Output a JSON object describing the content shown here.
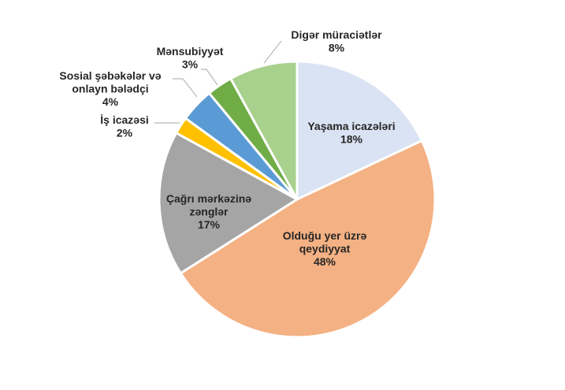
{
  "chart_data": {
    "type": "pie",
    "start": "12 o'clock, clockwise",
    "legend": "none (data labels)",
    "slices": [
      {
        "label_lines": [
          "Yaşama icazələri"
        ],
        "value": 18,
        "value_label": "18%",
        "color": "#DAE3F3"
      },
      {
        "label_lines": [
          "Olduğu yer üzrə",
          "qeydiyyat"
        ],
        "value": 48,
        "value_label": "48%",
        "color": "#F4B183"
      },
      {
        "label_lines": [
          "Çağrı mərkəzinə",
          "zənglər"
        ],
        "value": 17,
        "value_label": "17%",
        "color": "#A5A5A5"
      },
      {
        "label_lines": [
          "İş icazəsi"
        ],
        "value": 2,
        "value_label": "2%",
        "color": "#FFC000"
      },
      {
        "label_lines": [
          "Sosial şəbəkələr və",
          "onlayn bələdçi"
        ],
        "value": 4,
        "value_label": "4%",
        "color": "#5B9BD5"
      },
      {
        "label_lines": [
          "Mənsubiyyət"
        ],
        "value": 3,
        "value_label": "3%",
        "color": "#70AD47"
      },
      {
        "label_lines": [
          "Digər müraciətlər"
        ],
        "value": 8,
        "value_label": "8%",
        "color": "#A9D18E"
      }
    ]
  }
}
